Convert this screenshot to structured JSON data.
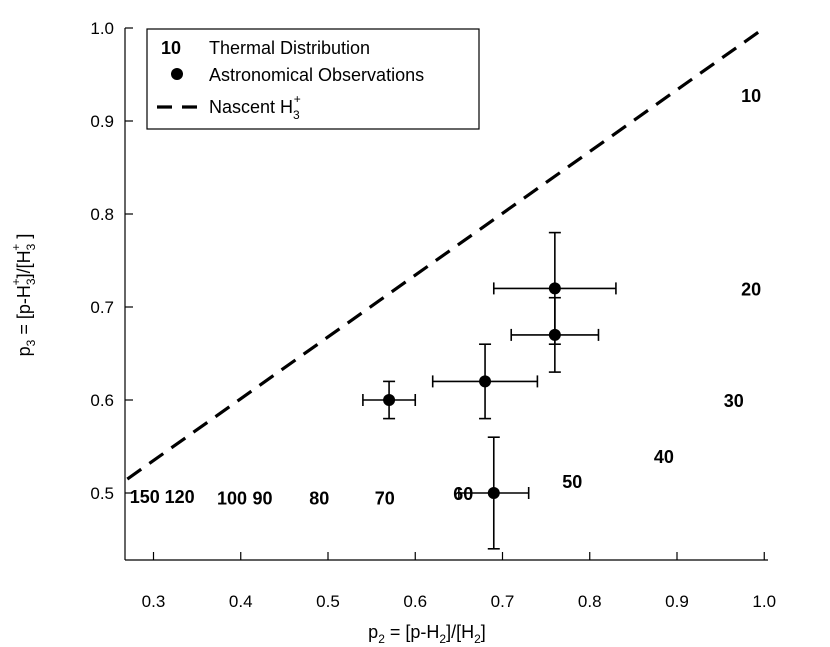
{
  "chart_data": {
    "type": "scatter",
    "xlim": [
      0.27,
      1.0
    ],
    "ylim": [
      0.43,
      1.0
    ],
    "grid": false,
    "legend_position": "top-left",
    "x_ticks": [
      "0.3",
      "0.4",
      "0.5",
      "0.6",
      "0.7",
      "0.8",
      "0.9",
      "1.0"
    ],
    "y_ticks": [
      "0.5",
      "0.6",
      "0.7",
      "0.8",
      "0.9",
      "1.0"
    ],
    "xlabel": {
      "base": "p",
      "sub": "2",
      "text": " = [p-H",
      "sub2": "2",
      "text2": "]/[H",
      "sub3": "2",
      "text3": "]"
    },
    "ylabel": {
      "base": "p",
      "sub": "3",
      "text1": " = [p-H",
      "sub2": "3",
      "sup2": "+",
      "text2": "]/[H",
      "sub3": "3",
      "sup3": "+",
      "text3": " ]"
    },
    "legend": {
      "thermal_key": "10",
      "thermal_label": "Thermal Distribution",
      "obs_label": "Astronomical Observations",
      "nascent_label": "Nascent H",
      "nascent_sub": "3",
      "nascent_sup": "+"
    },
    "nascent_line": {
      "x": [
        0.27,
        1.0
      ],
      "y": [
        0.515,
        1.0
      ]
    },
    "observations": [
      {
        "x": 0.57,
        "y": 0.6,
        "xerr": [
          0.54,
          0.6
        ],
        "yerr": [
          0.58,
          0.62
        ]
      },
      {
        "x": 0.68,
        "y": 0.62,
        "xerr": [
          0.62,
          0.74
        ],
        "yerr": [
          0.58,
          0.66
        ]
      },
      {
        "x": 0.76,
        "y": 0.72,
        "xerr": [
          0.69,
          0.83
        ],
        "yerr": [
          0.66,
          0.78
        ]
      },
      {
        "x": 0.76,
        "y": 0.67,
        "xerr": [
          0.71,
          0.81
        ],
        "yerr": [
          0.63,
          0.71
        ]
      },
      {
        "x": 0.69,
        "y": 0.5,
        "xerr": [
          0.65,
          0.73
        ],
        "yerr": [
          0.44,
          0.56
        ]
      }
    ],
    "thermal_distribution": [
      {
        "label": "10",
        "x": 0.985,
        "y": 0.928
      },
      {
        "label": "20",
        "x": 0.985,
        "y": 0.72
      },
      {
        "label": "30",
        "x": 0.965,
        "y": 0.6
      },
      {
        "label": "40",
        "x": 0.885,
        "y": 0.54
      },
      {
        "label": "50",
        "x": 0.78,
        "y": 0.513
      },
      {
        "label": "60",
        "x": 0.655,
        "y": 0.5
      },
      {
        "label": "70",
        "x": 0.565,
        "y": 0.495
      },
      {
        "label": "80",
        "x": 0.49,
        "y": 0.495
      },
      {
        "label": "90",
        "x": 0.425,
        "y": 0.495
      },
      {
        "label": "100",
        "x": 0.39,
        "y": 0.495
      },
      {
        "label": "120",
        "x": 0.33,
        "y": 0.497
      },
      {
        "label": "150",
        "x": 0.29,
        "y": 0.497
      }
    ]
  }
}
